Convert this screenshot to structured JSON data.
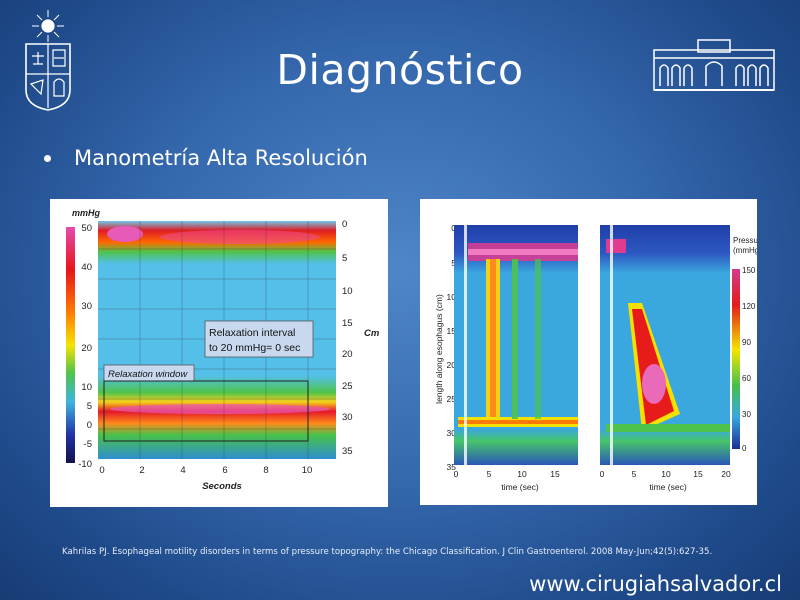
{
  "slide": {
    "title": "Diagnóstico",
    "bullet": "Manometría Alta Resolución",
    "citation": "Kahrilas PJ. Esophageal motility disorders in terms of pressure topography: the Chicago Classification. J Clin Gastroenterol. 2008 May-Jun;42(5):627-35.",
    "website": "www.cirugiahsalvador.cl"
  },
  "colors": {
    "background": "#3568ad",
    "title_text": "#ffffff"
  },
  "figure_left": {
    "scale_unit": "mmHg",
    "scale_ticks": [
      "50",
      "40",
      "30",
      "20",
      "10",
      "5",
      "0",
      "-5",
      "-10"
    ],
    "depth_unit": "Cm",
    "depth_ticks": [
      "0",
      "5",
      "10",
      "15",
      "20",
      "25",
      "30",
      "35"
    ],
    "x_ticks": [
      "0",
      "2",
      "4",
      "6",
      "8",
      "10"
    ],
    "x_label": "Seconds",
    "annotation": [
      "Relaxation interval",
      "to 20 mmHg= 0 sec"
    ],
    "window_label": "Relaxation window"
  },
  "figure_right": {
    "y_label": "length along esophagus (cm)",
    "y_ticks": [
      "0",
      "5",
      "10",
      "15",
      "20",
      "25",
      "30",
      "35"
    ],
    "x_label_a": "time (sec)",
    "x_ticks_a": [
      "0",
      "5",
      "10",
      "15"
    ],
    "x_label_b": "time (sec)",
    "x_ticks_b": [
      "0",
      "5",
      "10",
      "15",
      "20"
    ],
    "scale_title": [
      "Pressure",
      "(mmHg)"
    ],
    "scale_ticks": [
      "150",
      "120",
      "90",
      "60",
      "30",
      "0"
    ]
  },
  "icons": {
    "left_logo": "university-crest-icon",
    "right_logo": "hospital-building-icon"
  }
}
